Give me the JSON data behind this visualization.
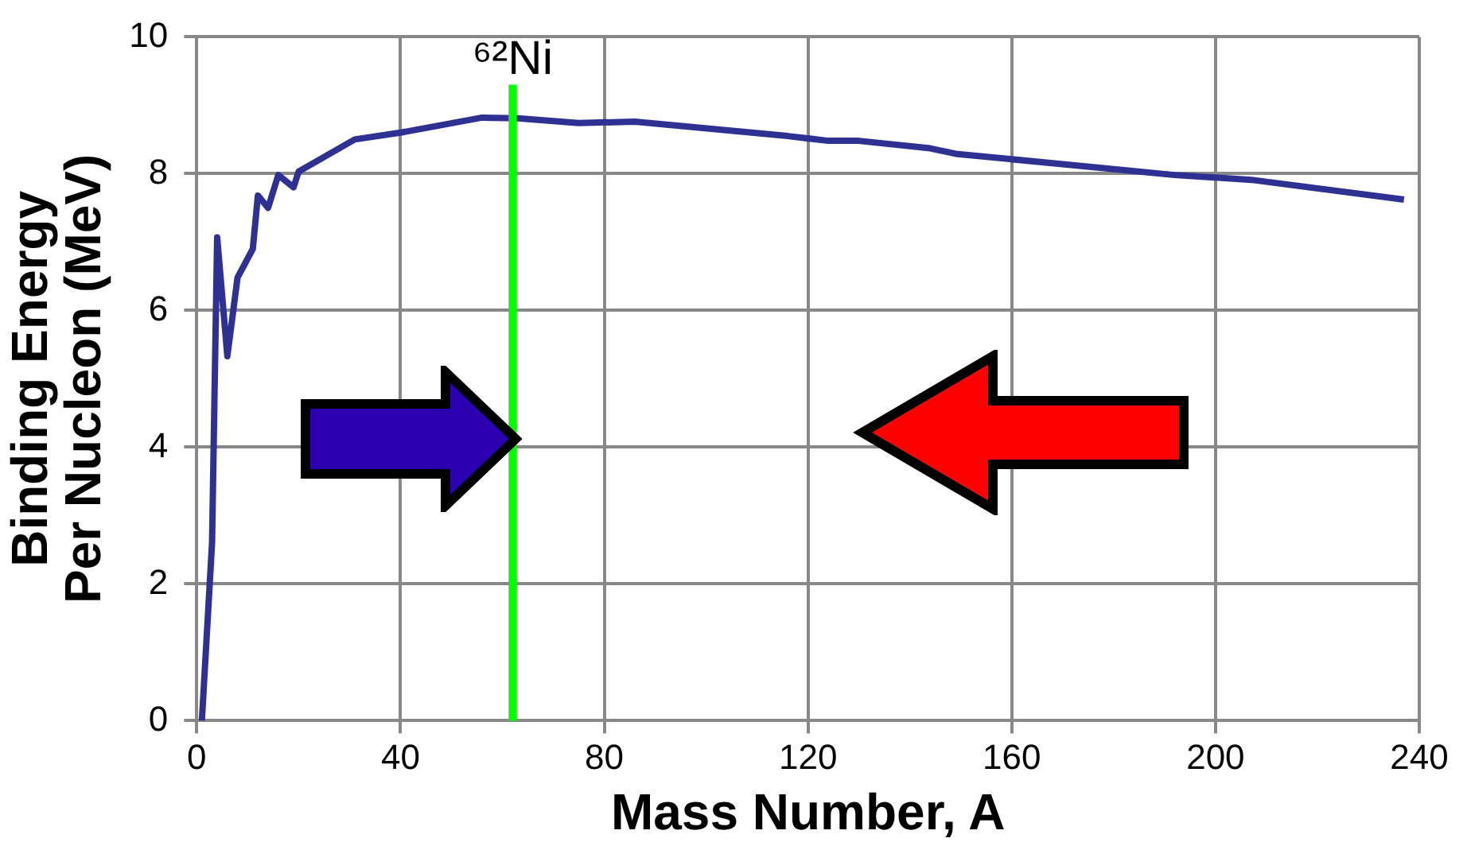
{
  "chart_data": {
    "type": "line",
    "xlabel": "Mass Number, A",
    "ylabel": "Binding Energy Per Nucleon (MeV)",
    "series": [
      {
        "color": "#2e3192",
        "x": [
          1,
          3,
          4,
          6,
          8,
          11,
          12,
          14,
          16,
          19,
          20,
          31,
          40,
          56,
          63,
          75,
          86,
          116,
          124,
          130,
          144,
          149,
          192,
          207,
          237
        ],
        "values": [
          0,
          2.6,
          7.07,
          5.33,
          6.48,
          6.9,
          7.68,
          7.5,
          7.98,
          7.8,
          8.03,
          8.5,
          8.6,
          8.82,
          8.81,
          8.74,
          8.76,
          8.55,
          8.48,
          8.48,
          8.37,
          8.29,
          7.98,
          7.91,
          7.62
        ]
      }
    ],
    "xlim": [
      0,
      240
    ],
    "xticks": [
      0,
      40,
      80,
      120,
      160,
      200,
      240
    ],
    "ylim": [
      0,
      10
    ],
    "yticks": [
      0,
      2,
      4,
      6,
      8,
      10
    ],
    "grid": true,
    "legend": false,
    "marker": "none",
    "line_style": "solid",
    "ref_lines": [
      {
        "axis": "x",
        "value": 62,
        "label": "⁶²Ni",
        "color": "#00ff00"
      }
    ]
  }
}
